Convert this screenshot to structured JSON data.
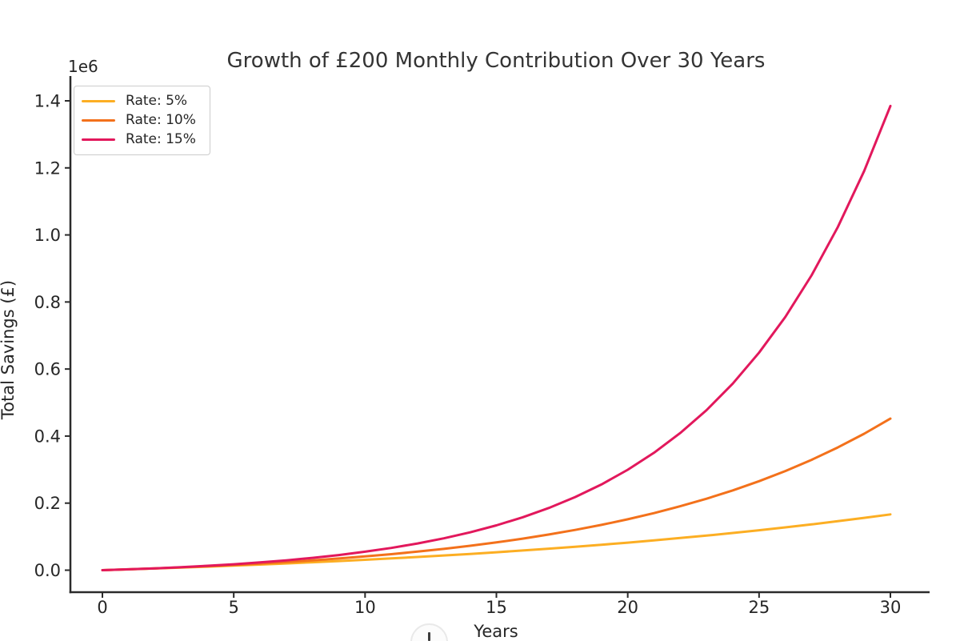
{
  "chart_data": {
    "type": "line",
    "title": "Growth of £200 Monthly Contribution Over 30 Years",
    "xlabel": "Years",
    "ylabel": "Total Savings (£)",
    "y_offset_text": "1e6",
    "grid": false,
    "xlim": [
      -1.2,
      31.5
    ],
    "ylim": [
      -67000,
      1469000
    ],
    "x_ticks": [
      0,
      5,
      10,
      15,
      20,
      25,
      30
    ],
    "x_tick_labels": [
      "0",
      "5",
      "10",
      "15",
      "20",
      "25",
      "30"
    ],
    "y_ticks": [
      0,
      200000,
      400000,
      600000,
      800000,
      1000000,
      1200000,
      1400000
    ],
    "y_tick_labels": [
      "0.0",
      "0.2",
      "0.4",
      "0.6",
      "0.8",
      "1.0",
      "1.2",
      "1.4"
    ],
    "legend": {
      "location": "upper left"
    },
    "x": [
      0,
      1,
      2,
      3,
      4,
      5,
      6,
      7,
      8,
      9,
      10,
      11,
      12,
      13,
      14,
      15,
      16,
      17,
      18,
      19,
      20,
      21,
      22,
      23,
      24,
      25,
      26,
      27,
      28,
      29,
      30
    ],
    "series": [
      {
        "name": "Rate: 5%",
        "rate_percent": 5,
        "color": "#FCAE23",
        "values": [
          0,
          2456,
          5037,
          7751,
          10603,
          13601,
          16752,
          20065,
          23548,
          27208,
          31056,
          35101,
          39353,
          43822,
          48520,
          53458,
          58649,
          64105,
          69840,
          75869,
          82207,
          88868,
          95871,
          103231,
          110969,
          119102,
          127651,
          136638,
          146084,
          156014,
          166452
        ]
      },
      {
        "name": "Rate: 10%",
        "rate_percent": 10,
        "color": "#F3711B",
        "values": [
          0,
          2513,
          5289,
          8356,
          11745,
          15487,
          19622,
          24190,
          29236,
          34811,
          40969,
          47772,
          55288,
          63590,
          72762,
          82894,
          94087,
          106453,
          120113,
          135203,
          151874,
          170290,
          190635,
          213110,
          237938,
          265367,
          295667,
          329140,
          366119,
          406969,
          452098
        ]
      },
      {
        "name": "Rate: 15%",
        "rate_percent": 15,
        "color": "#E2185C",
        "values": [
          0,
          2572,
          5558,
          9023,
          13046,
          17715,
          23135,
          29426,
          36729,
          45205,
          55044,
          66465,
          79722,
          95110,
          112972,
          133705,
          157771,
          185705,
          218131,
          255769,
          299458,
          350171,
          409036,
          477366,
          556679,
          648742,
          755604,
          879645,
          1023625,
          1190751,
          1384656
        ]
      }
    ],
    "overlay": {
      "cursor_indicator_icon": "cursor-click-indicator"
    }
  }
}
